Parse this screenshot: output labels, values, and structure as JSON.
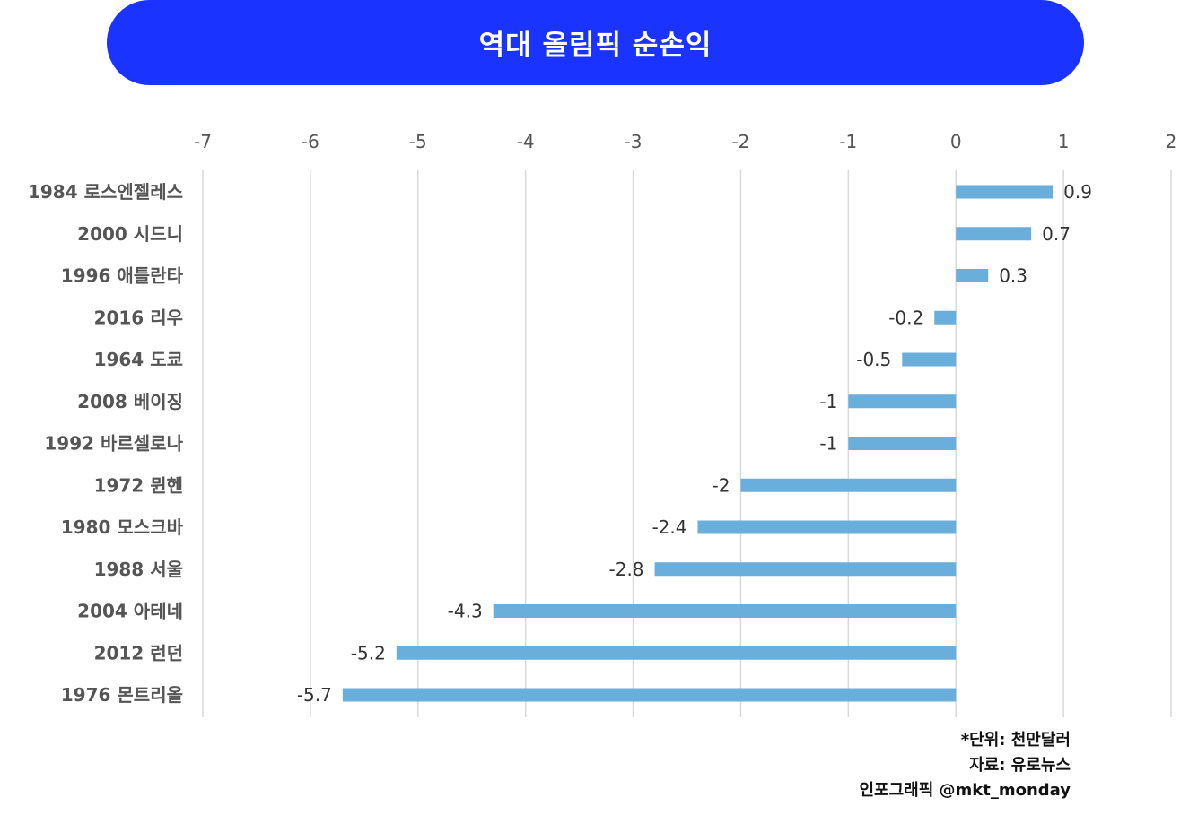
{
  "title": "역대 올림픽 순손익",
  "colors": {
    "banner": "#1a33ff",
    "bar": "#6aaedc",
    "grid": "#d9d9d9",
    "text": "#555555"
  },
  "footnotes": {
    "unit": "*단위: 천만달러",
    "source": "자료: 유로뉴스",
    "credit": "인포그래픽 @mkt_monday"
  },
  "chart_data": {
    "type": "bar",
    "orientation": "horizontal",
    "title": "역대 올림픽 순손익",
    "xlim": [
      -7,
      2
    ],
    "x_ticks": [
      "-7",
      "-6",
      "-5",
      "-4",
      "-3",
      "-2",
      "-1",
      "0",
      "1",
      "2"
    ],
    "x_axis_position": "top",
    "grid": true,
    "categories": [
      "1984 로스엔젤레스",
      "2000 시드니",
      "1996 애틀란타",
      "2016 리우",
      "1964 도쿄",
      "2008 베이징",
      "1992 바르셀로나",
      "1972 뮌헨",
      "1980 모스크바",
      "1988 서울",
      "2004 아테네",
      "2012 런던",
      "1976 몬트리올"
    ],
    "values": [
      0.9,
      0.7,
      0.3,
      -0.2,
      -0.5,
      -1,
      -1,
      -2,
      -2.4,
      -2.8,
      -4.3,
      -5.2,
      -5.7
    ],
    "data_labels": [
      "0.9",
      "0.7",
      "0.3",
      "-0.2",
      "-0.5",
      "-1",
      "-1",
      "-2",
      "-2.4",
      "-2.8",
      "-4.3",
      "-5.2",
      "-5.7"
    ]
  }
}
